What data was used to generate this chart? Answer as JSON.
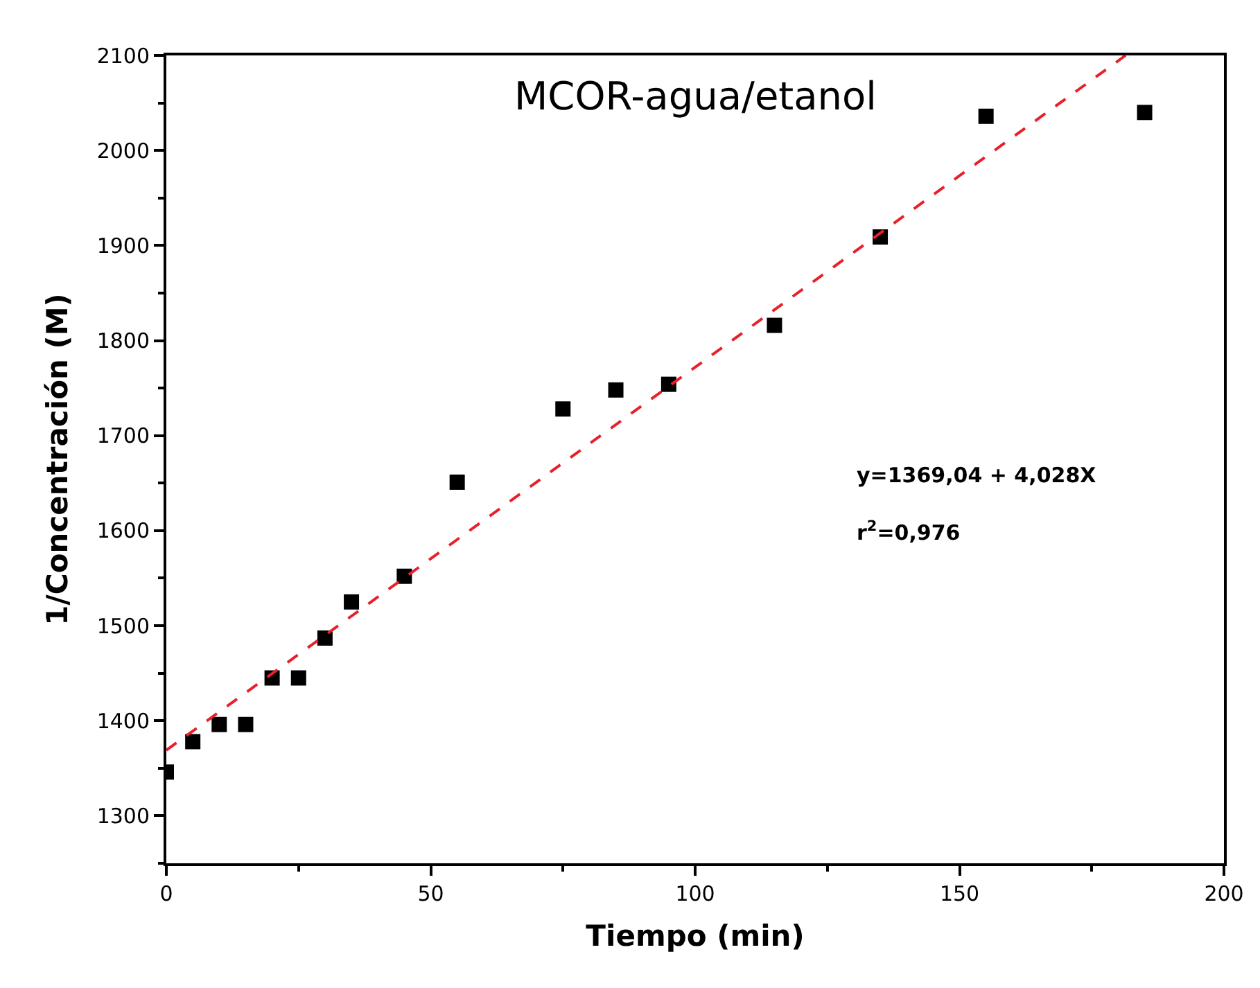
{
  "chart_data": {
    "type": "scatter",
    "title": "MCOR-agua/etanol",
    "xlabel": "Tiempo (min)",
    "ylabel": "1/Concentración (M)",
    "annotations": [
      "y=1369,04 + 4,028X",
      "r$^{2}$=0,976"
    ],
    "series": [
      {
        "color": "#000000",
        "marker": "square",
        "x": [
          0,
          5,
          10,
          15,
          20,
          25,
          30,
          35,
          45,
          55,
          75,
          85,
          95,
          115,
          135,
          155,
          185
        ],
        "values": [
          1346,
          1378,
          1396,
          1396,
          1445,
          1445,
          1487,
          1525,
          1552,
          1651,
          1728,
          1748,
          1754,
          1816,
          1909,
          2036,
          2040
        ]
      },
      {
        "type": "line",
        "color": "#e8202a",
        "line_style": "dashed",
        "marker": "none",
        "x": [
          0,
          181.4
        ],
        "values": [
          1369,
          2100
        ]
      }
    ],
    "xlim": [
      0,
      200
    ],
    "xticks": [
      0,
      50,
      100,
      150,
      200
    ],
    "ylim": [
      1250,
      2100
    ],
    "yticks": [
      1300,
      1400,
      1500,
      1600,
      1700,
      1800,
      1900,
      2000,
      2100
    ]
  }
}
